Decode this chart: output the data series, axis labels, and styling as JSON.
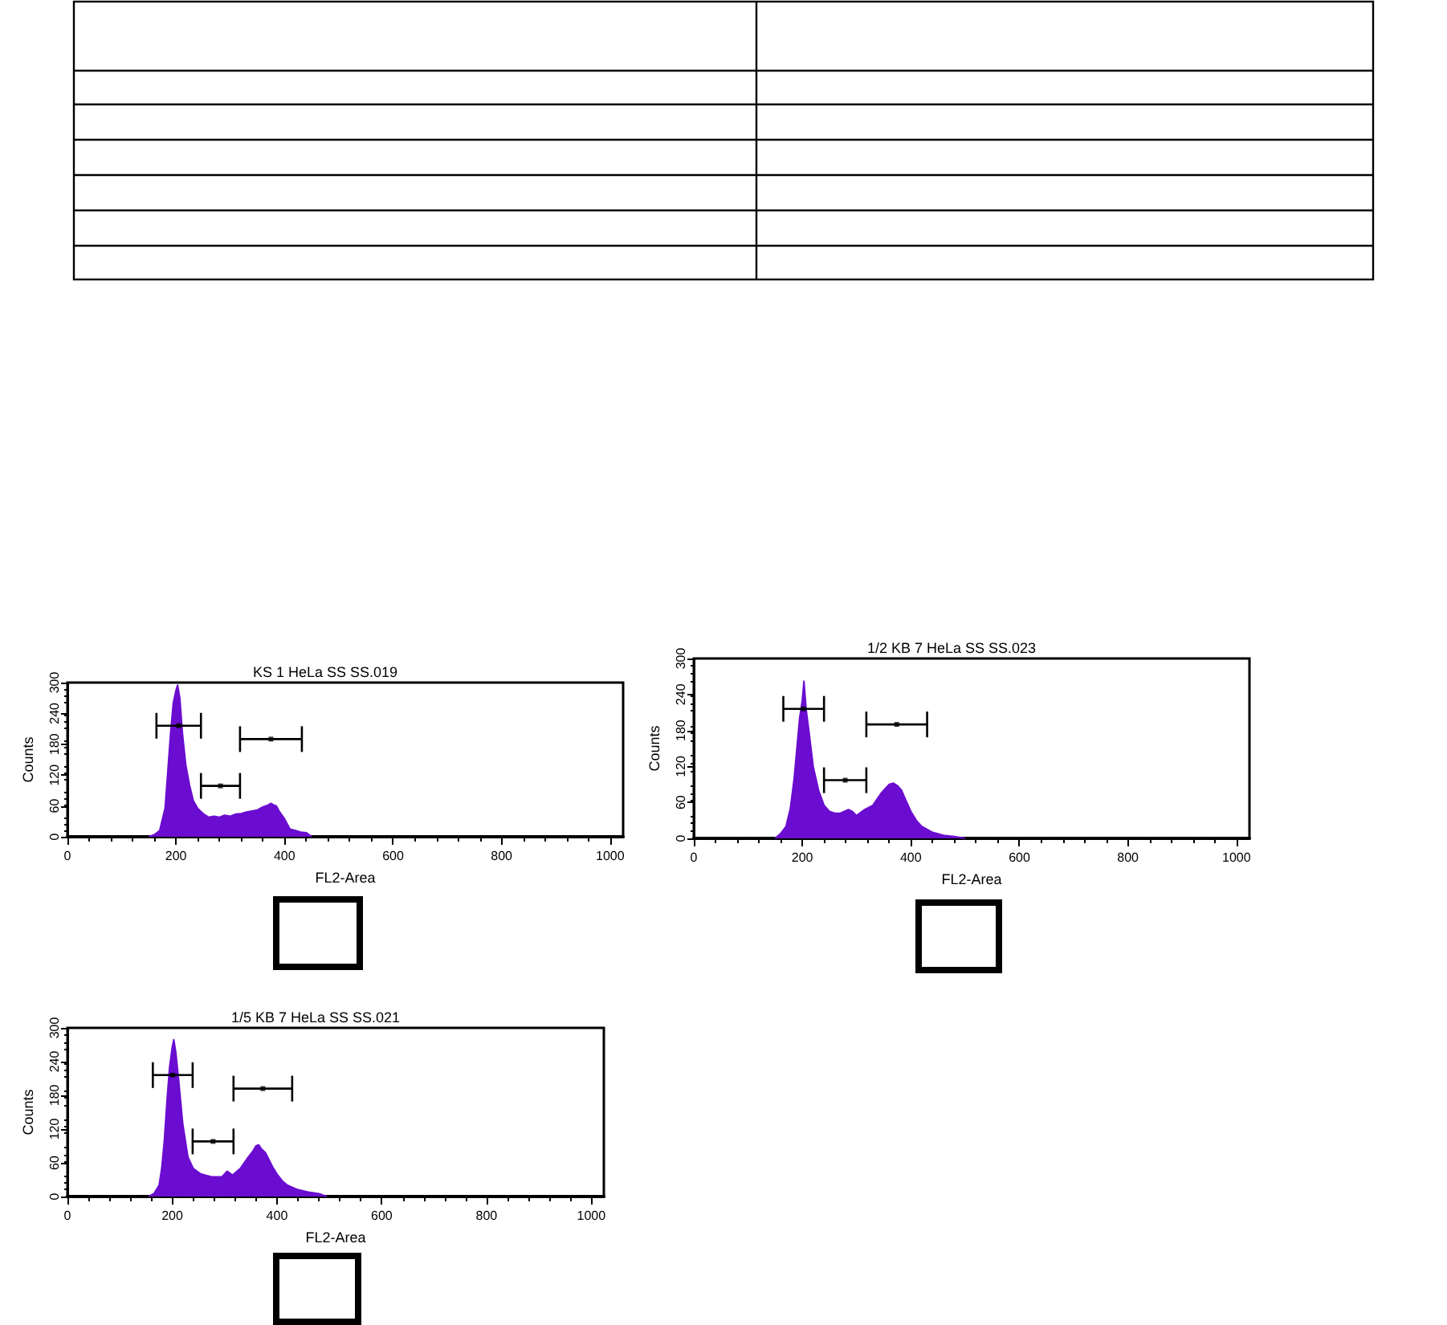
{
  "chart_data": [
    {
      "type": "area",
      "title": "KS 1 HeLa SS SS.019",
      "xlabel": "FL2-Area",
      "ylabel": "Counts",
      "xlim": [
        0,
        1024
      ],
      "xticks": [
        0,
        200,
        400,
        600,
        800,
        1000
      ],
      "ylim": [
        0,
        300
      ],
      "yticks": [
        0,
        60,
        120,
        180,
        240,
        300
      ],
      "grid": false,
      "series": [
        {
          "color": "#6a0dd0",
          "x": [
            150,
            160,
            170,
            180,
            190,
            195,
            200,
            203,
            207,
            212,
            218,
            225,
            232,
            240,
            250,
            260,
            270,
            280,
            290,
            300,
            310,
            320,
            330,
            340,
            350,
            360,
            370,
            375,
            380,
            385,
            390,
            400,
            410,
            420,
            430,
            440,
            450
          ],
          "values": [
            0,
            4,
            12,
            56,
            200,
            260,
            285,
            295,
            270,
            200,
            140,
            100,
            70,
            55,
            45,
            38,
            40,
            38,
            42,
            40,
            44,
            45,
            48,
            50,
            52,
            58,
            62,
            65,
            62,
            60,
            50,
            35,
            15,
            12,
            9,
            8,
            0
          ]
        },
        {
          "type": "scatter",
          "marker": "square",
          "color": "#000000",
          "x": [
            205,
            282,
            375
          ],
          "values": [
            216,
            99,
            190
          ],
          "xerrors": [
            [
              164,
              246
            ],
            [
              246,
              318
            ],
            [
              318,
              432
            ]
          ]
        }
      ]
    },
    {
      "type": "area",
      "title": "1/2 KB 7 HeLa SS SS.023",
      "xlabel": "FL2-Area",
      "ylabel": "Counts",
      "xlim": [
        0,
        1024
      ],
      "xticks": [
        0,
        200,
        400,
        600,
        800,
        1000
      ],
      "ylim": [
        0,
        300
      ],
      "yticks": [
        0,
        60,
        120,
        180,
        240,
        300
      ],
      "grid": false,
      "series": [
        {
          "color": "#6a0dd0",
          "x": [
            150,
            160,
            170,
            178,
            185,
            190,
            195,
            200,
            203,
            207,
            212,
            220,
            230,
            240,
            250,
            260,
            270,
            285,
            292,
            300,
            315,
            330,
            345,
            355,
            360,
            368,
            375,
            383,
            390,
            400,
            410,
            420,
            440,
            460,
            480,
            500
          ],
          "values": [
            0,
            8,
            20,
            50,
            100,
            150,
            200,
            230,
            262,
            215,
            180,
            120,
            80,
            55,
            45,
            42,
            42,
            48,
            45,
            38,
            48,
            55,
            75,
            85,
            90,
            92,
            88,
            80,
            65,
            45,
            30,
            20,
            10,
            5,
            3,
            0
          ]
        },
        {
          "type": "scatter",
          "marker": "square",
          "color": "#000000",
          "x": [
            202,
            279,
            374
          ],
          "values": [
            216,
            97,
            190
          ],
          "xerrors": [
            [
              165,
              240
            ],
            [
              240,
              318
            ],
            [
              318,
              430
            ]
          ]
        }
      ]
    },
    {
      "type": "area",
      "title": "1/5 KB 7 HeLa SS SS.021",
      "xlabel": "FL2-Area",
      "ylabel": "Counts",
      "xlim": [
        0,
        1024
      ],
      "xticks": [
        0,
        200,
        400,
        600,
        800,
        1000
      ],
      "ylim": [
        0,
        300
      ],
      "yticks": [
        0,
        60,
        120,
        180,
        240,
        300
      ],
      "grid": false,
      "series": [
        {
          "color": "#6a0dd0",
          "x": [
            155,
            165,
            175,
            180,
            185,
            190,
            195,
            200,
            203,
            207,
            212,
            220,
            230,
            240,
            255,
            275,
            295,
            305,
            315,
            330,
            345,
            355,
            360,
            365,
            370,
            378,
            385,
            392,
            400,
            410,
            420,
            440,
            460,
            480,
            495
          ],
          "values": [
            0,
            5,
            20,
            50,
            100,
            170,
            230,
            265,
            279,
            255,
            210,
            130,
            70,
            50,
            40,
            35,
            35,
            45,
            38,
            50,
            70,
            82,
            90,
            92,
            85,
            78,
            65,
            52,
            40,
            28,
            20,
            12,
            8,
            5,
            0
          ]
        },
        {
          "type": "scatter",
          "marker": "square",
          "color": "#000000",
          "x": [
            201,
            278,
            373
          ],
          "values": [
            216,
            98,
            192
          ],
          "xerrors": [
            [
              163,
              239
            ],
            [
              239,
              317
            ],
            [
              317,
              429
            ]
          ]
        }
      ]
    }
  ]
}
